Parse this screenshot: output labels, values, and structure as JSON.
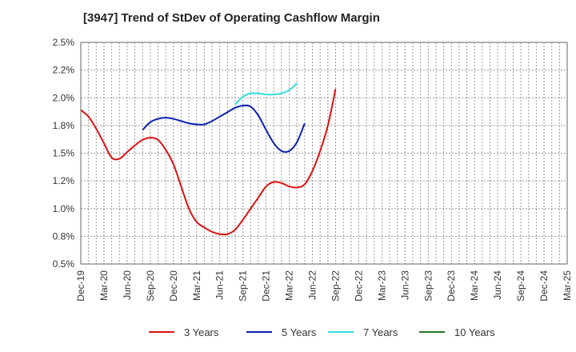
{
  "title": "[3947]  Trend of StDev of Operating Cashflow Margin",
  "chart_data": {
    "type": "line",
    "title": "[3947]  Trend of StDev of Operating Cashflow Margin",
    "xlabel": "",
    "ylabel": "",
    "x_categories": [
      "Dec-19",
      "Mar-20",
      "Jun-20",
      "Sep-20",
      "Dec-20",
      "Mar-21",
      "Jun-21",
      "Sep-21",
      "Dec-21",
      "Mar-22",
      "Jun-22",
      "Sep-22",
      "Dec-22",
      "Mar-23",
      "Jun-23",
      "Sep-23",
      "Dec-23",
      "Mar-24",
      "Jun-24",
      "Sep-24",
      "Dec-24",
      "Mar-25"
    ],
    "y_ticks": [
      "0.5%",
      "0.8%",
      "1.0%",
      "1.2%",
      "1.5%",
      "1.8%",
      "2.0%",
      "2.2%",
      "2.5%"
    ],
    "y_tick_values": [
      0.5,
      0.75,
      1.0,
      1.25,
      1.5,
      1.75,
      2.0,
      2.25,
      2.5
    ],
    "ylim": [
      0.5,
      2.5
    ],
    "grid": true,
    "legend_position": "bottom",
    "series": [
      {
        "name": "3 Years",
        "color": "#dd1111",
        "points": [
          [
            0,
            1.89
          ],
          [
            1,
            1.83
          ],
          [
            2,
            1.72
          ],
          [
            3,
            1.59
          ],
          [
            4,
            1.46
          ],
          [
            5,
            1.45
          ],
          [
            6,
            1.51
          ],
          [
            7,
            1.57
          ],
          [
            8,
            1.62
          ],
          [
            9,
            1.64
          ],
          [
            10,
            1.62
          ],
          [
            11,
            1.53
          ],
          [
            12,
            1.4
          ],
          [
            13,
            1.2
          ],
          [
            14,
            1.0
          ],
          [
            15,
            0.88
          ],
          [
            16,
            0.83
          ],
          [
            17,
            0.79
          ],
          [
            18,
            0.77
          ],
          [
            19,
            0.77
          ],
          [
            20,
            0.81
          ],
          [
            21,
            0.9
          ],
          [
            22,
            1.0
          ],
          [
            23,
            1.1
          ],
          [
            24,
            1.2
          ],
          [
            25,
            1.24
          ],
          [
            26,
            1.23
          ],
          [
            27,
            1.2
          ],
          [
            28,
            1.19
          ],
          [
            29,
            1.22
          ],
          [
            30,
            1.34
          ],
          [
            31,
            1.52
          ],
          [
            32,
            1.75
          ],
          [
            33,
            2.08
          ]
        ]
      },
      {
        "name": "5 Years",
        "color": "#0a1eb5",
        "points": [
          [
            8,
            1.71
          ],
          [
            9,
            1.78
          ],
          [
            10,
            1.81
          ],
          [
            11,
            1.82
          ],
          [
            12,
            1.81
          ],
          [
            13,
            1.79
          ],
          [
            14,
            1.77
          ],
          [
            15,
            1.76
          ],
          [
            16,
            1.76
          ],
          [
            17,
            1.79
          ],
          [
            18,
            1.83
          ],
          [
            19,
            1.87
          ],
          [
            20,
            1.91
          ],
          [
            21,
            1.93
          ],
          [
            22,
            1.92
          ],
          [
            23,
            1.84
          ],
          [
            24,
            1.71
          ],
          [
            25,
            1.59
          ],
          [
            26,
            1.52
          ],
          [
            27,
            1.52
          ],
          [
            28,
            1.6
          ],
          [
            29,
            1.77
          ]
        ]
      },
      {
        "name": "7 Years",
        "color": "#33dddd",
        "points": [
          [
            20,
            1.94
          ],
          [
            21,
            2.01
          ],
          [
            22,
            2.04
          ],
          [
            23,
            2.04
          ],
          [
            24,
            2.03
          ],
          [
            25,
            2.03
          ],
          [
            26,
            2.04
          ],
          [
            27,
            2.07
          ],
          [
            28,
            2.13
          ]
        ]
      },
      {
        "name": "10 Years",
        "color": "#227722",
        "points": []
      }
    ]
  }
}
